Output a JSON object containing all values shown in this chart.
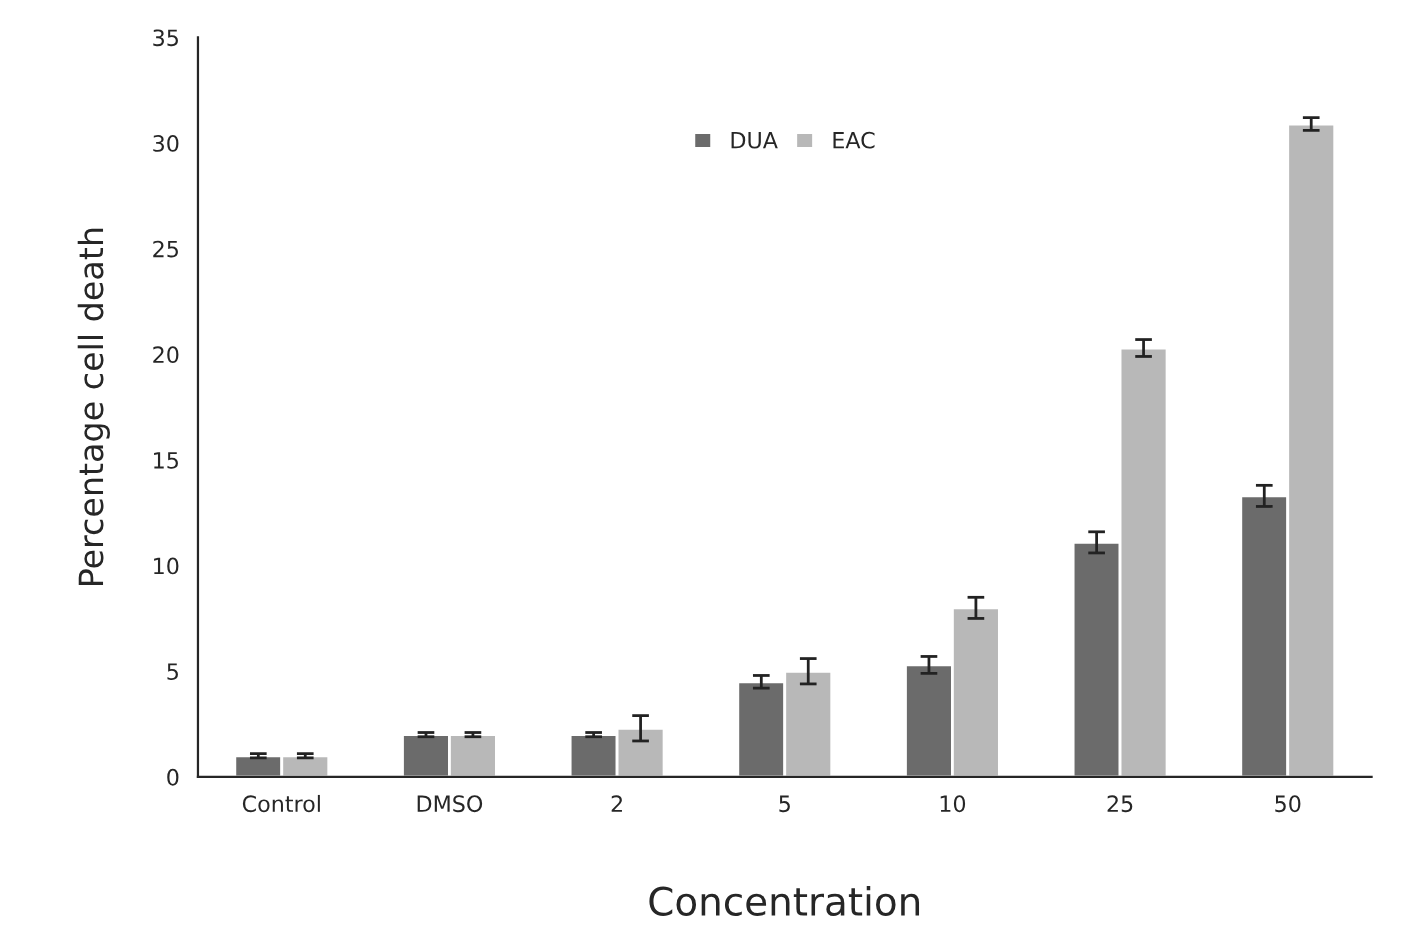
{
  "chart_data": {
    "type": "bar",
    "xlabel": "Concentration",
    "ylabel": "Percentage cell death",
    "categories": [
      "Control",
      "DMSO",
      "2",
      "5",
      "10",
      "25",
      "50"
    ],
    "series": [
      {
        "name": "DUA",
        "color": "#6b6b6b",
        "values": [
          1.0,
          2.0,
          2.0,
          4.5,
          5.3,
          11.1,
          13.3
        ],
        "errors": [
          0.1,
          0.1,
          0.1,
          0.3,
          0.4,
          0.5,
          0.5
        ]
      },
      {
        "name": "EAC",
        "color": "#b8b8b8",
        "values": [
          1.0,
          2.0,
          2.3,
          5.0,
          8.0,
          20.3,
          30.9
        ],
        "errors": [
          0.1,
          0.1,
          0.6,
          0.6,
          0.5,
          0.4,
          0.3
        ]
      }
    ],
    "ylim": [
      0,
      35
    ],
    "yticks": [
      0,
      5,
      10,
      15,
      20,
      25,
      30,
      35
    ],
    "grid": false,
    "legend": "top"
  }
}
